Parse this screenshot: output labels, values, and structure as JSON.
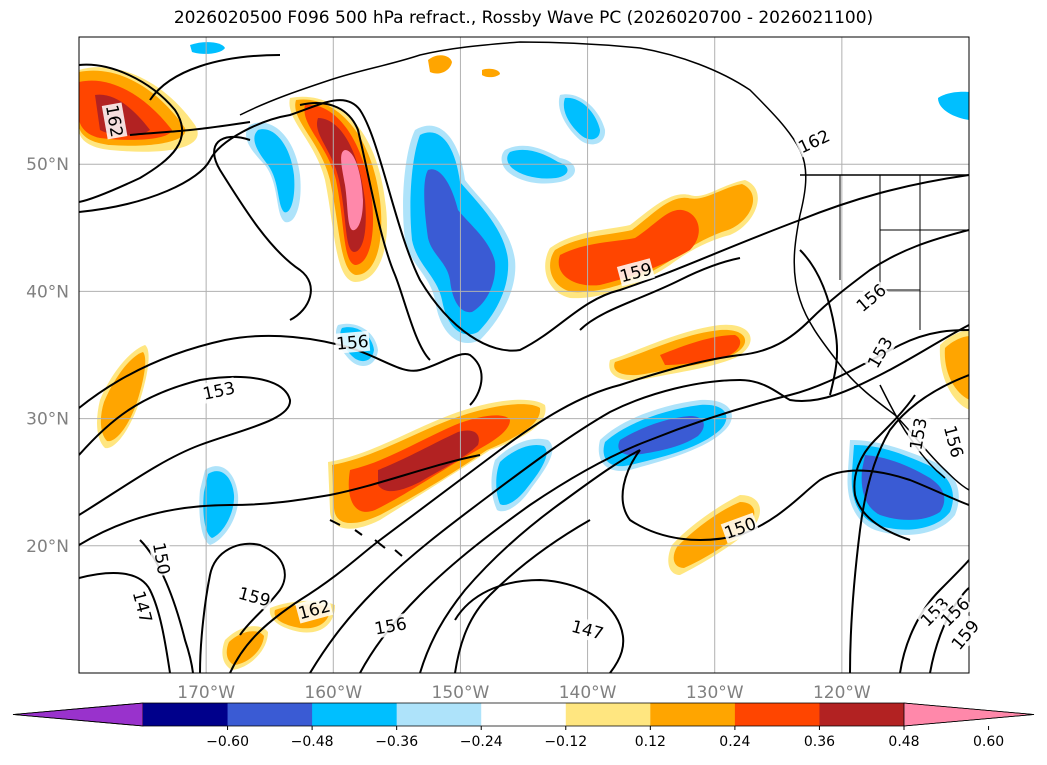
{
  "title": "2026020500 F096 500 hPa refract., Rossby Wave PC (2026020700 - 2026021100)",
  "map": {
    "lon_range": [
      -180,
      -110
    ],
    "lat_range": [
      10,
      60
    ],
    "lat_labels": [
      "20°N",
      "30°N",
      "40°N",
      "50°N"
    ],
    "lat_values": [
      20,
      30,
      40,
      50
    ],
    "lon_labels": [
      "170°W",
      "160°W",
      "150°W",
      "140°W",
      "130°W",
      "120°W"
    ],
    "lon_values": [
      -170,
      -160,
      -150,
      -140,
      -130,
      -120
    ],
    "axis_label_color": "#808080",
    "grid_color": "#b0b0b0"
  },
  "contours": {
    "labels": [
      {
        "text": "162",
        "lon": -177.2,
        "lat": 53.4,
        "angle": 80
      },
      {
        "text": "162",
        "lon": -122.2,
        "lat": 51.8,
        "angle": -25
      },
      {
        "text": "159",
        "lon": -136.2,
        "lat": 41.5,
        "angle": -15
      },
      {
        "text": "156",
        "lon": -158.5,
        "lat": 36.0,
        "angle": -5
      },
      {
        "text": "156",
        "lon": -117.7,
        "lat": 39.5,
        "angle": -40
      },
      {
        "text": "153",
        "lon": -169.0,
        "lat": 32.2,
        "angle": -12
      },
      {
        "text": "153",
        "lon": -117.0,
        "lat": 35.2,
        "angle": -60
      },
      {
        "text": "153",
        "lon": -114.0,
        "lat": 28.8,
        "angle": -80
      },
      {
        "text": "156",
        "lon": -111.2,
        "lat": 28.2,
        "angle": 75
      },
      {
        "text": "150",
        "lon": -173.5,
        "lat": 19.0,
        "angle": 80
      },
      {
        "text": "147",
        "lon": -175.0,
        "lat": 15.2,
        "angle": 75
      },
      {
        "text": "159",
        "lon": -166.2,
        "lat": 16.0,
        "angle": 15
      },
      {
        "text": "162",
        "lon": -161.5,
        "lat": 15.0,
        "angle": -15
      },
      {
        "text": "156",
        "lon": -155.5,
        "lat": 13.7,
        "angle": -10
      },
      {
        "text": "147",
        "lon": -140.0,
        "lat": 13.4,
        "angle": 15
      },
      {
        "text": "150",
        "lon": -128.0,
        "lat": 21.4,
        "angle": -20
      },
      {
        "text": "153",
        "lon": -112.7,
        "lat": 14.8,
        "angle": -45
      },
      {
        "text": "156",
        "lon": -111.1,
        "lat": 14.8,
        "angle": -45
      },
      {
        "text": "159",
        "lon": -110.3,
        "lat": 13.0,
        "angle": -50
      }
    ]
  },
  "colorbar": {
    "ticks": [
      "−0.60",
      "−0.48",
      "−0.36",
      "−0.24",
      "−0.12",
      "0.12",
      "0.24",
      "0.36",
      "0.48",
      "0.60"
    ],
    "colors": [
      "#9932cc",
      "#00008b",
      "#3a5bd4",
      "#00bfff",
      "#aee3fa",
      "#ffffff",
      "#ffe680",
      "#ffa500",
      "#ff4500",
      "#b22222",
      "#ff88aa"
    ]
  },
  "shading": {
    "neg_colors": {
      "light": "#aee3fa",
      "mid": "#00bfff",
      "deep": "#3a5bd4"
    },
    "pos_colors": {
      "light": "#ffe680",
      "mid": "#ffa500",
      "strong": "#ff4500",
      "deep": "#b22222",
      "peak": "#ff88aa"
    }
  }
}
